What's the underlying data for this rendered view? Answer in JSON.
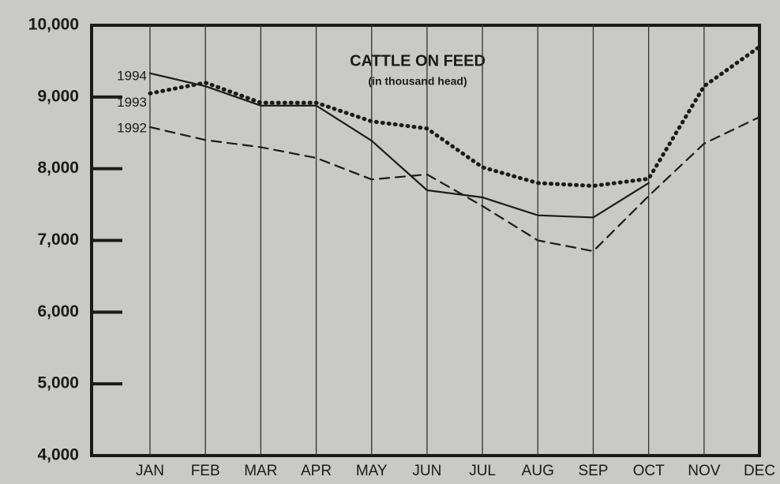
{
  "chart_data": {
    "type": "line",
    "title": "CATTLE ON FEED",
    "subtitle": "(in thousand head)",
    "categories": [
      "JAN",
      "FEB",
      "MAR",
      "APR",
      "MAY",
      "JUN",
      "JUL",
      "AUG",
      "SEP",
      "OCT",
      "NOV",
      "DEC"
    ],
    "series": [
      {
        "name": "1994",
        "color": "#1a1a1a",
        "style": "solid",
        "values": [
          9330,
          9150,
          8880,
          8880,
          8390,
          7700,
          7600,
          7350,
          7320,
          7800,
          null,
          null
        ]
      },
      {
        "name": "1993",
        "color": "#1a1a1a",
        "style": "dotted",
        "values": [
          9050,
          9200,
          8920,
          8920,
          8660,
          8560,
          8020,
          7800,
          7760,
          7860,
          9150,
          9700
        ]
      },
      {
        "name": "1992",
        "color": "#1a1a1a",
        "style": "dashed",
        "values": [
          8580,
          8400,
          8300,
          8150,
          7850,
          7920,
          7480,
          7000,
          6850,
          7620,
          8350,
          8720
        ]
      }
    ],
    "ylim": [
      4000,
      10000
    ],
    "yticks": [
      {
        "value": 4000,
        "label": "4,000"
      },
      {
        "value": 5000,
        "label": "5,000"
      },
      {
        "value": 6000,
        "label": "6,000"
      },
      {
        "value": 7000,
        "label": "7,000"
      },
      {
        "value": 8000,
        "label": "8,000"
      },
      {
        "value": 9000,
        "label": "9,000"
      },
      {
        "value": 10000,
        "label": "10,000"
      }
    ],
    "grid": true
  }
}
